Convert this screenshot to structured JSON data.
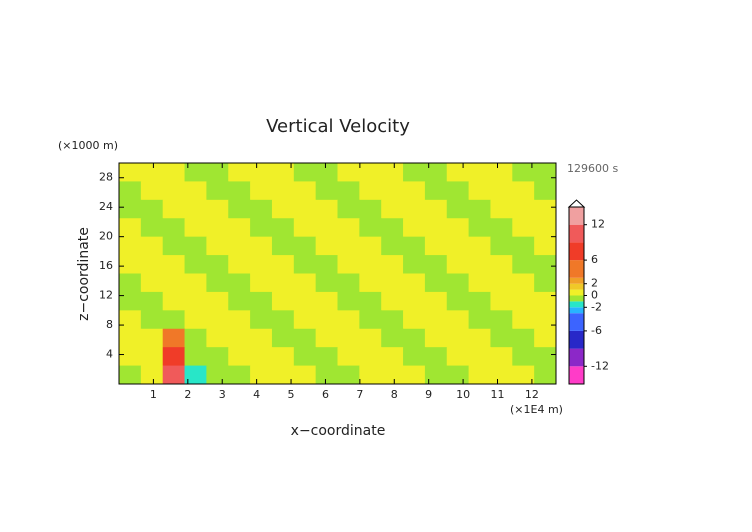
{
  "chart_data": {
    "type": "contour",
    "title": "Vertical Velocity",
    "y_unit_label": "(×1000 m)",
    "x_unit_label": "(×1E4 m)",
    "time_label": "129600 s",
    "xlabel": "x−coordinate",
    "ylabel": "z−coordinate",
    "xlim": [
      0,
      12.7
    ],
    "ylim": [
      0,
      30
    ],
    "xticks": [
      1,
      2,
      3,
      4,
      5,
      6,
      7,
      8,
      9,
      10,
      11,
      12
    ],
    "yticks": [
      4,
      8,
      12,
      16,
      20,
      24,
      28
    ],
    "z": [
      [
        0.5,
        0.5,
        0.5,
        -0.5,
        -0.5,
        0.5,
        0.5,
        0.5,
        -0.5,
        -0.5,
        0.5,
        0.5,
        0.5,
        -0.5,
        -0.5,
        0.5,
        0.5,
        0.5,
        -0.5,
        -0.5
      ],
      [
        -0.5,
        0.5,
        0.5,
        0.5,
        -0.5,
        -0.5,
        0.5,
        0.5,
        0.5,
        -0.5,
        -0.5,
        0.5,
        0.5,
        0.5,
        -0.5,
        -0.5,
        0.5,
        0.5,
        0.5,
        -0.5
      ],
      [
        -0.5,
        -0.5,
        0.5,
        0.5,
        0.5,
        -0.5,
        -0.5,
        0.5,
        0.5,
        0.5,
        -0.5,
        -0.5,
        0.5,
        0.5,
        0.5,
        -0.5,
        -0.5,
        0.5,
        0.5,
        0.5
      ],
      [
        0.5,
        -0.5,
        -0.5,
        0.5,
        0.5,
        0.5,
        -0.5,
        -0.5,
        0.5,
        0.5,
        0.5,
        -0.5,
        -0.5,
        0.5,
        0.5,
        0.5,
        -0.5,
        -0.5,
        0.5,
        0.5
      ],
      [
        0.5,
        0.5,
        -0.5,
        -0.5,
        0.5,
        0.5,
        0.5,
        -0.5,
        -0.5,
        0.5,
        0.5,
        0.5,
        -0.5,
        -0.5,
        0.5,
        0.5,
        0.5,
        -0.5,
        -0.5,
        0.5
      ],
      [
        0.5,
        0.5,
        0.5,
        -0.5,
        -0.5,
        0.5,
        0.5,
        0.5,
        -0.5,
        -0.5,
        0.5,
        0.5,
        0.5,
        -0.5,
        -0.5,
        0.5,
        0.5,
        0.5,
        -0.5,
        -0.5
      ],
      [
        -0.5,
        0.5,
        0.5,
        0.5,
        -0.5,
        -0.5,
        0.5,
        0.5,
        0.5,
        -0.5,
        -0.5,
        0.5,
        0.5,
        0.5,
        -0.5,
        -0.5,
        0.5,
        0.5,
        0.5,
        -0.5
      ],
      [
        -0.5,
        -0.5,
        0.5,
        0.5,
        0.5,
        -0.5,
        -0.5,
        0.5,
        0.5,
        0.5,
        -0.5,
        -0.5,
        0.5,
        0.5,
        0.5,
        -0.5,
        -0.5,
        0.5,
        0.5,
        0.5
      ],
      [
        0.5,
        -0.5,
        -0.5,
        0.5,
        0.5,
        0.5,
        -0.5,
        -0.5,
        0.5,
        0.5,
        0.5,
        -0.5,
        -0.5,
        0.5,
        0.5,
        0.5,
        -0.5,
        -0.5,
        0.5,
        0.5
      ],
      [
        0.5,
        0.5,
        3,
        -0.5,
        0.5,
        0.5,
        0.5,
        -0.5,
        -0.5,
        0.5,
        0.5,
        0.5,
        -0.5,
        -0.5,
        0.5,
        0.5,
        0.5,
        -0.5,
        -0.5,
        0.5
      ],
      [
        0.5,
        0.5,
        6,
        -0.5,
        -0.5,
        0.5,
        0.5,
        0.5,
        -0.5,
        -0.5,
        0.5,
        0.5,
        0.5,
        -0.5,
        -0.5,
        0.5,
        0.5,
        0.5,
        -0.5,
        -0.5
      ],
      [
        -0.5,
        0.5,
        9,
        -1.5,
        -0.5,
        -0.5,
        0.5,
        0.5,
        0.5,
        -0.5,
        -0.5,
        0.5,
        0.5,
        0.5,
        -0.5,
        -0.5,
        0.5,
        0.5,
        0.5,
        -0.5
      ]
    ],
    "levels": [
      -15,
      -12,
      -9,
      -6,
      -3,
      -2,
      -1,
      0,
      1,
      2,
      3,
      6,
      9,
      12,
      15
    ],
    "colors": [
      "#ff3cc8",
      "#8c28c8",
      "#2828c8",
      "#3c64ff",
      "#28b4ff",
      "#28e6c8",
      "#a0e632",
      "#f0f028",
      "#f0c828",
      "#f0a028",
      "#f07828",
      "#f03c28",
      "#f05a5a",
      "#f0a0a0"
    ],
    "colorbar_lim": [
      -15,
      15
    ],
    "colorbar_ticks": [
      12,
      6,
      2,
      0,
      -2,
      -6,
      -12
    ]
  }
}
